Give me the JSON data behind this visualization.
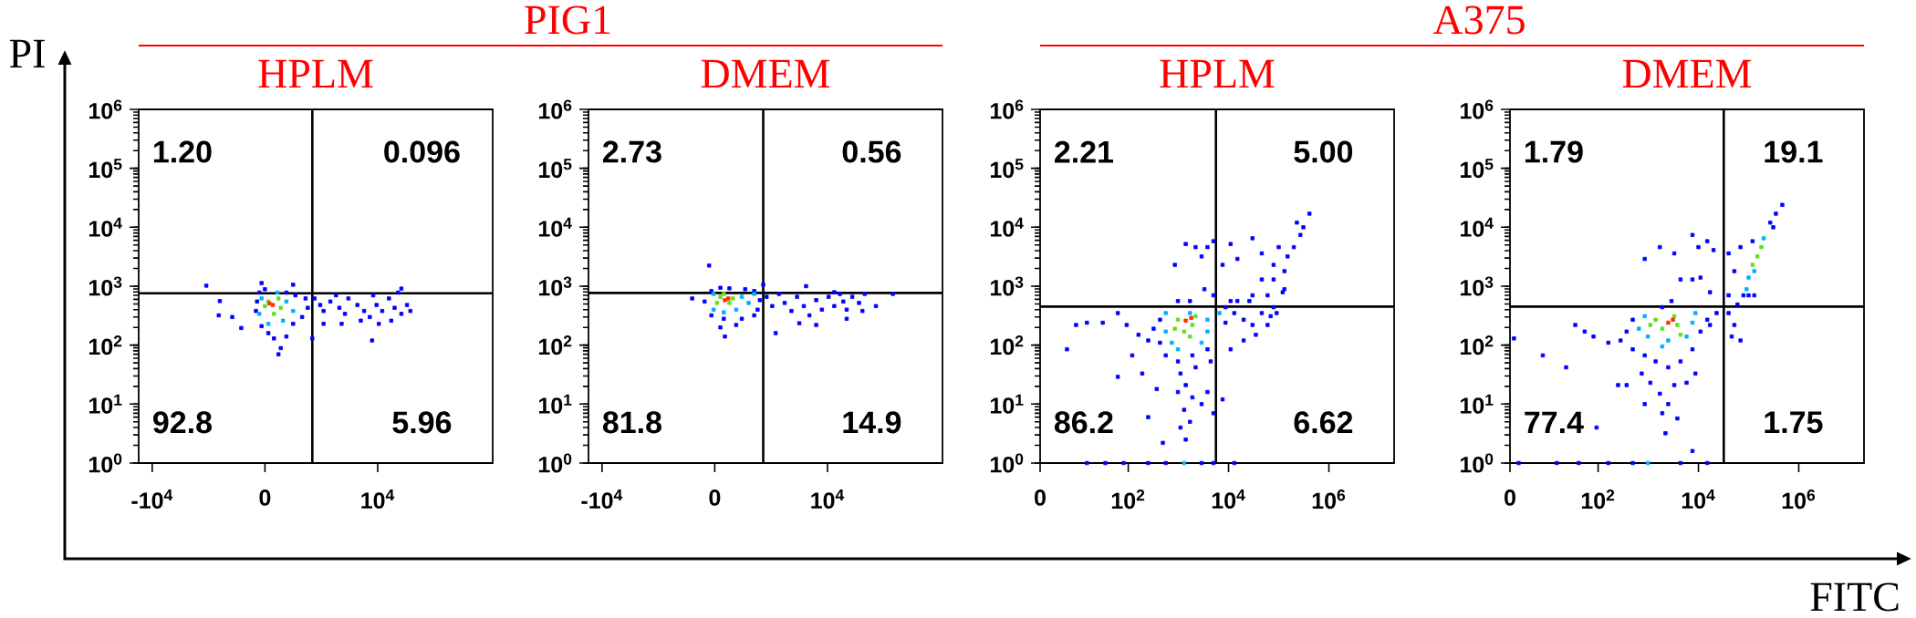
{
  "chart_data": [
    {
      "type": "scatter",
      "title": "HPLM",
      "ylabel": "PI",
      "xlim": [
        -11200,
        20200
      ],
      "xticks": [
        {
          "value": -10000,
          "label": "-10$^{4}$"
        },
        0,
        {
          "value": 10000,
          "label": "10$^{4}$"
        }
      ],
      "ylim": [
        1,
        1000000
      ],
      "yticks": [
        {
          "value": 1,
          "label": "10$^{0}$"
        },
        {
          "value": 10,
          "label": "10$^{1}$"
        },
        {
          "value": 100,
          "label": "10$^{2}$"
        },
        {
          "value": 1000,
          "label": "10$^{3}$"
        },
        {
          "value": 10000,
          "label": "10$^{4}$"
        },
        {
          "value": 100000,
          "label": "10$^{5}$"
        },
        {
          "value": 1000000,
          "label": "10$^{6}$"
        }
      ],
      "log": "y",
      "marker": "square",
      "ref_lines": [
        {
          "axis": "x",
          "value": 4200,
          "color": "#000000"
        },
        {
          "axis": "y",
          "value": 760,
          "color": "#000000"
        }
      ],
      "annotations": [
        "1.20",
        "0.096",
        "92.8",
        "5.96"
      ],
      "series": [
        {
          "color": "#0000ff",
          "x": [
            -500,
            0,
            1900,
            2700,
            3600,
            3800,
            3300,
            2500,
            1900,
            800,
            1400,
            1200,
            300,
            -300,
            -800,
            -700,
            4400,
            4900,
            5200,
            5800,
            6600,
            7100,
            7400,
            8200,
            8800,
            9300,
            9900,
            10400,
            11000,
            11500,
            12100,
            12600,
            12900,
            11200,
            10100,
            8500,
            6800,
            5200,
            6300,
            9600,
            11800,
            -5200,
            -4000,
            -4100,
            -2900,
            -2100,
            9500,
            12100,
            -300,
            2500,
            4200
          ],
          "values": [
            780,
            890,
            780,
            700,
            620,
            430,
            300,
            230,
            140,
            130,
            89,
            70,
            160,
            210,
            380,
            550,
            620,
            480,
            380,
            550,
            430,
            340,
            620,
            480,
            380,
            300,
            480,
            380,
            620,
            430,
            340,
            480,
            380,
            260,
            230,
            260,
            230,
            230,
            700,
            700,
            780,
            1020,
            560,
            320,
            300,
            195,
            120,
            910,
            1130,
            1060,
            130
          ]
        },
        {
          "color": "#00b0ff",
          "x": [
            -300,
            1900,
            300,
            1600,
            -500,
            2500,
            1100
          ],
          "values": [
            620,
            550,
            230,
            260,
            340,
            380,
            780
          ]
        },
        {
          "color": "#60e020",
          "x": [
            300,
            1400,
            800,
            0,
            1200
          ],
          "values": [
            550,
            430,
            340,
            460,
            620
          ]
        },
        {
          "color": "#ff3000",
          "x": [
            700,
            400
          ],
          "values": [
            480,
            510
          ]
        }
      ]
    },
    {
      "type": "scatter",
      "title": "DMEM",
      "subtitle": "PIG1",
      "xlim": [
        -11200,
        20200
      ],
      "xticks": [
        {
          "value": -10000,
          "label": "-10$^{4}$"
        },
        0,
        {
          "value": 10000,
          "label": "10$^{4}$"
        }
      ],
      "ylim": [
        1,
        1000000
      ],
      "yticks": [
        {
          "value": 1,
          "label": "10$^{0}$"
        },
        {
          "value": 10,
          "label": "10$^{1}$"
        },
        {
          "value": 100,
          "label": "10$^{2}$"
        },
        {
          "value": 1000,
          "label": "10$^{3}$"
        },
        {
          "value": 10000,
          "label": "10$^{4}$"
        },
        {
          "value": 100000,
          "label": "10$^{5}$"
        },
        {
          "value": 1000000,
          "label": "10$^{6}$"
        }
      ],
      "log": "y",
      "marker": "square",
      "ref_lines": [
        {
          "axis": "x",
          "value": 4300,
          "color": "#000000"
        },
        {
          "axis": "y",
          "value": 770,
          "color": "#000000"
        }
      ],
      "annotations": [
        "2.73",
        "0.56",
        "81.8",
        "14.9"
      ],
      "series": [
        {
          "color": "#0000ff",
          "x": [
            -300,
            500,
            1300,
            2700,
            3500,
            4000,
            3500,
            2400,
            1900,
            800,
            500,
            900,
            -300,
            -900,
            -2000,
            3800,
            4600,
            5100,
            5700,
            6200,
            6800,
            7300,
            7900,
            8400,
            9000,
            9500,
            10100,
            10600,
            11100,
            11400,
            11700,
            12200,
            12800,
            13100,
            13300,
            14300,
            15800,
            5400,
            7500,
            9000,
            11700,
            8100,
            4300,
            10600,
            -500
          ],
          "values": [
            830,
            940,
            920,
            890,
            830,
            580,
            320,
            280,
            220,
            280,
            200,
            140,
            320,
            550,
            620,
            400,
            660,
            460,
            740,
            520,
            380,
            660,
            460,
            320,
            580,
            400,
            660,
            460,
            740,
            550,
            400,
            660,
            520,
            380,
            740,
            460,
            740,
            160,
            235,
            220,
            280,
            1000,
            1060,
            790,
            2240
          ]
        },
        {
          "color": "#00b0ff",
          "x": [
            -100,
            2400,
            1900,
            800,
            -100,
            3000,
            3500
          ],
          "values": [
            740,
            660,
            400,
            360,
            400,
            520,
            740
          ]
        },
        {
          "color": "#60e020",
          "x": [
            500,
            1300,
            1600,
            200,
            800
          ],
          "values": [
            660,
            520,
            620,
            520,
            740
          ]
        },
        {
          "color": "#ff3000",
          "x": [
            900,
            1200
          ],
          "values": [
            580,
            620
          ]
        }
      ]
    },
    {
      "type": "scatter",
      "title": "HPLM",
      "xlim": [
        0,
        20000000
      ],
      "xticks": [
        0,
        {
          "value": 100,
          "label": "10$^{2}$"
        },
        {
          "value": 10000,
          "label": "10$^{4}$"
        },
        {
          "value": 1000000,
          "label": "10$^{6}$"
        }
      ],
      "ylim": [
        1,
        1000000
      ],
      "yticks": [
        {
          "value": 1,
          "label": "10$^{0}$"
        },
        {
          "value": 10,
          "label": "10$^{1}$"
        },
        {
          "value": 100,
          "label": "10$^{2}$"
        },
        {
          "value": 1000,
          "label": "10$^{3}$"
        },
        {
          "value": 10000,
          "label": "10$^{4}$"
        },
        {
          "value": 100000,
          "label": "10$^{5}$"
        },
        {
          "value": 1000000,
          "label": "10$^{6}$"
        }
      ],
      "log": "xy",
      "marker": "square",
      "ref_lines": [
        {
          "axis": "x",
          "value": 5600,
          "color": "#000000"
        },
        {
          "axis": "y",
          "value": 450,
          "color": "#000000"
        }
      ],
      "annotations": [
        "2.21",
        "5.00",
        "86.2",
        "6.62"
      ],
      "series": [
        {
          "color": "#0000ff",
          "x": [
            430,
            320,
            430,
            560,
            980,
            1900,
            3800,
            4400,
            2200,
            1100,
            1400,
            980,
            1900,
            1300,
            3800,
            2900,
            1700,
            1100,
            1400,
            490,
            5000,
            7600,
            250,
            160,
            93,
            62,
            31,
            15,
            9.1,
            6,
            62,
            190,
            250,
            370,
            120,
            8700,
            13000,
            20000,
            30000,
            46000,
            69000,
            91000,
            60000,
            35000,
            20000,
            11000,
            79000,
            26000,
            8700,
            15000,
            5000,
            3300,
            1700,
            980,
            5000,
            3800,
            2900,
            2200,
            1400,
            850,
            7600,
            15000,
            30000,
            46000,
            79000,
            46000,
            79000,
            120000,
            130000,
            100000,
            150000,
            200000,
            270000,
            310000,
            410000,
            130000,
            60000,
            30000,
            11000,
            11000,
            230000,
            15,
            35,
            81,
            250,
            560,
            2900,
            5000,
            13000
          ],
          "values": [
            270,
            190,
            110,
            67,
            53,
            67,
            85,
            53,
            42,
            33,
            21,
            16,
            13,
            8,
            16,
            10,
            5,
            4,
            2.5,
            2.2,
            7,
            12,
            120,
            150,
            220,
            350,
            240,
            240,
            220,
            85,
            29,
            33,
            6,
            18,
            67,
            240,
            350,
            270,
            220,
            350,
            310,
            350,
            220,
            150,
            120,
            85,
            440,
            560,
            440,
            560,
            700,
            890,
            560,
            560,
            5800,
            4600,
            3200,
            4600,
            5200,
            2300,
            2300,
            2900,
            6500,
            3600,
            2300,
            1300,
            1300,
            790,
            1800,
            4600,
            3200,
            4600,
            7400,
            10000,
            17000,
            890,
            700,
            700,
            560,
            5200,
            12000,
            1,
            1,
            1,
            1,
            1,
            1,
            1,
            1
          ]
        },
        {
          "color": "#00b0ff",
          "x": [
            560,
            3800,
            740,
            2900,
            3800,
            560,
            1700,
            6600,
            980,
            1300
          ],
          "values": [
            350,
            270,
            110,
            110,
            170,
            170,
            350,
            350,
            85,
            1
          ]
        },
        {
          "color": "#60e020",
          "x": [
            980,
            1900,
            1300,
            2200,
            850,
            1700
          ],
          "values": [
            270,
            220,
            170,
            310,
            190,
            140
          ]
        },
        {
          "color": "#ff3000",
          "x": [
            1400,
            1800
          ],
          "values": [
            260,
            290
          ]
        }
      ]
    },
    {
      "type": "scatter",
      "title": "DMEM",
      "subtitle": "A375",
      "xlabel": "FITC",
      "xlim": [
        0,
        20000000
      ],
      "xticks": [
        0,
        {
          "value": 100,
          "label": "10$^{2}$"
        },
        {
          "value": 10000,
          "label": "10$^{4}$"
        },
        {
          "value": 1000000,
          "label": "10$^{6}$"
        }
      ],
      "ylim": [
        1,
        1000000
      ],
      "yticks": [
        {
          "value": 1,
          "label": "10$^{0}$"
        },
        {
          "value": 10,
          "label": "10$^{1}$"
        },
        {
          "value": 100,
          "label": "10$^{2}$"
        },
        {
          "value": 1000,
          "label": "10$^{3}$"
        },
        {
          "value": 10000,
          "label": "10$^{4}$"
        },
        {
          "value": 100000,
          "label": "10$^{5}$"
        },
        {
          "value": 1000000,
          "label": "10$^{6}$"
        }
      ],
      "log": "xy",
      "marker": "square",
      "ref_lines": [
        {
          "axis": "x",
          "value": 32000,
          "color": "#000000"
        },
        {
          "axis": "y",
          "value": 450,
          "color": "#000000"
        }
      ],
      "annotations": [
        "1.79",
        "19.1",
        "77.4",
        "1.75"
      ],
      "series": [
        {
          "color": "#0000ff",
          "x": [
            490,
            370,
            490,
            850,
            1400,
            2500,
            4400,
            7600,
            11000,
            15000,
            17000,
            23000,
            740,
            1100,
            1700,
            2500,
            3300,
            5800,
            8700,
            1900,
            3800,
            850,
            2200,
            7600,
            280,
            160,
            81,
            54,
            35,
            7.9,
            23,
            2.1,
            250,
            93,
            370,
            850,
            1700,
            3300,
            7600,
            10000,
            15000,
            20000,
            7600,
            11000,
            17000,
            4400,
            2900,
            1900,
            40000,
            52000,
            46000,
            69000,
            60000,
            79000,
            40000,
            52000,
            40000,
            69000,
            120000,
            270000,
            310000,
            350000,
            470000,
            100000,
            130000,
            2.6,
            15,
            41,
            160,
            490,
            4400,
            15000
          ],
          "values": [
            270,
            170,
            85,
            67,
            53,
            42,
            53,
            85,
            170,
            270,
            220,
            350,
            33,
            23,
            15,
            10,
            21,
            23,
            33,
            7,
            5.7,
            10,
            3.2,
            1.6,
            120,
            110,
            140,
            170,
            220,
            67,
            42,
            130,
            21,
            4,
            21,
            2900,
            4600,
            3600,
            7400,
            4600,
            5800,
            4100,
            1300,
            1400,
            790,
            1300,
            560,
            440,
            350,
            220,
            140,
            120,
            490,
            700,
            700,
            1800,
            3600,
            4600,
            5800,
            12000,
            10000,
            17000,
            24000,
            700,
            700,
            1,
            1,
            1,
            1,
            1,
            1,
            1
          ]
        },
        {
          "color": "#00b0ff",
          "x": [
            850,
            7600,
            980,
            2500,
            5800,
            650,
            1900,
            8700,
            100000,
            200000,
            130000,
            91000,
            980
          ],
          "values": [
            310,
            240,
            140,
            120,
            140,
            190,
            95,
            350,
            1400,
            6500,
            1800,
            890,
            1
          ]
        },
        {
          "color": "#60e020",
          "x": [
            1400,
            3800,
            1900,
            3300,
            1100,
            4400,
            150000,
            120000,
            180000
          ],
          "values": [
            270,
            220,
            190,
            310,
            220,
            150,
            3200,
            2300,
            4600
          ]
        },
        {
          "color": "#ff3000",
          "x": [
            2500,
            3100
          ],
          "values": [
            240,
            270
          ]
        }
      ]
    }
  ]
}
